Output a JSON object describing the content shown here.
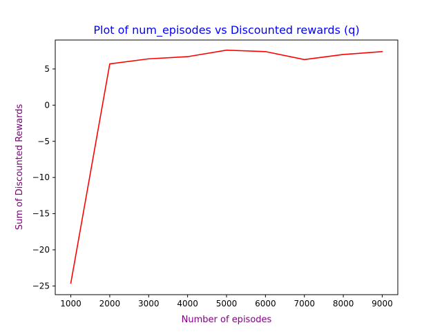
{
  "chart_data": {
    "type": "line",
    "title": "Plot of num_episodes vs Discounted rewards (q)",
    "xlabel": "Number of episodes",
    "ylabel": "Sum of Discounted Rewards",
    "x": [
      1000,
      2000,
      3000,
      4000,
      5000,
      6000,
      7000,
      8000,
      9000
    ],
    "series": [
      {
        "values": [
          -24.6,
          5.7,
          6.4,
          6.7,
          7.6,
          7.4,
          6.3,
          7.0,
          7.4
        ],
        "color": "#ff0000"
      }
    ],
    "xlim": [
      600,
      9400
    ],
    "ylim": [
      -26.2,
      9.0
    ],
    "xticks": [
      1000,
      2000,
      3000,
      4000,
      5000,
      6000,
      7000,
      8000,
      9000
    ],
    "yticks": [
      -25,
      -20,
      -15,
      -10,
      -5,
      0,
      5
    ],
    "ytick_labels": [
      "−25",
      "−20",
      "−15",
      "−10",
      "−5",
      "0",
      "5"
    ],
    "grid": false,
    "title_color": "#0000ff",
    "label_color": "#800080"
  }
}
